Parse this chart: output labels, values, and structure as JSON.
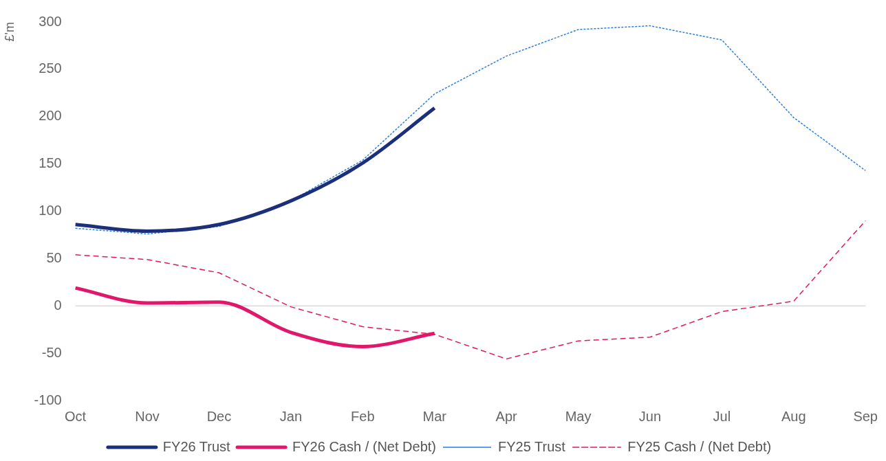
{
  "chart_data": {
    "type": "line",
    "ylabel": "£'m",
    "categories": [
      "Oct",
      "Nov",
      "Dec",
      "Jan",
      "Feb",
      "Mar",
      "Apr",
      "May",
      "Jun",
      "Jul",
      "Aug",
      "Sep"
    ],
    "series": [
      {
        "name": "FY26 Trust",
        "color": "#1b2f7a",
        "line_style": "solid",
        "values": [
          86,
          79,
          86,
          111,
          151,
          209,
          null,
          null,
          null,
          null,
          null,
          null
        ]
      },
      {
        "name": "FY26 Cash / (Net Debt)",
        "color": "#e0176b",
        "line_style": "solid",
        "values": [
          19,
          3,
          4,
          -28,
          -43,
          -29,
          null,
          null,
          null,
          null,
          null,
          null
        ]
      },
      {
        "name": "FY25 Trust",
        "color": "#2a7de1",
        "line_style": "dotted",
        "values": [
          82,
          76,
          84,
          111,
          154,
          224,
          264,
          292,
          296,
          281,
          199,
          143
        ]
      },
      {
        "name": "FY25 Cash / (Net Debt)",
        "color": "#e0195c",
        "line_style": "dashed",
        "values": [
          54,
          49,
          35,
          -1,
          -22,
          -30,
          -56,
          -37,
          -33,
          -6,
          5,
          90
        ]
      }
    ],
    "ylim": [
      -100,
      300
    ],
    "yticks": [
      -100,
      -50,
      0,
      50,
      100,
      150,
      200,
      250,
      300
    ],
    "ref_lines": [
      {
        "axis": "y",
        "value": 0,
        "color": "#d9d9d9"
      }
    ],
    "grid": false,
    "legend": "bottom",
    "marker": "none"
  }
}
